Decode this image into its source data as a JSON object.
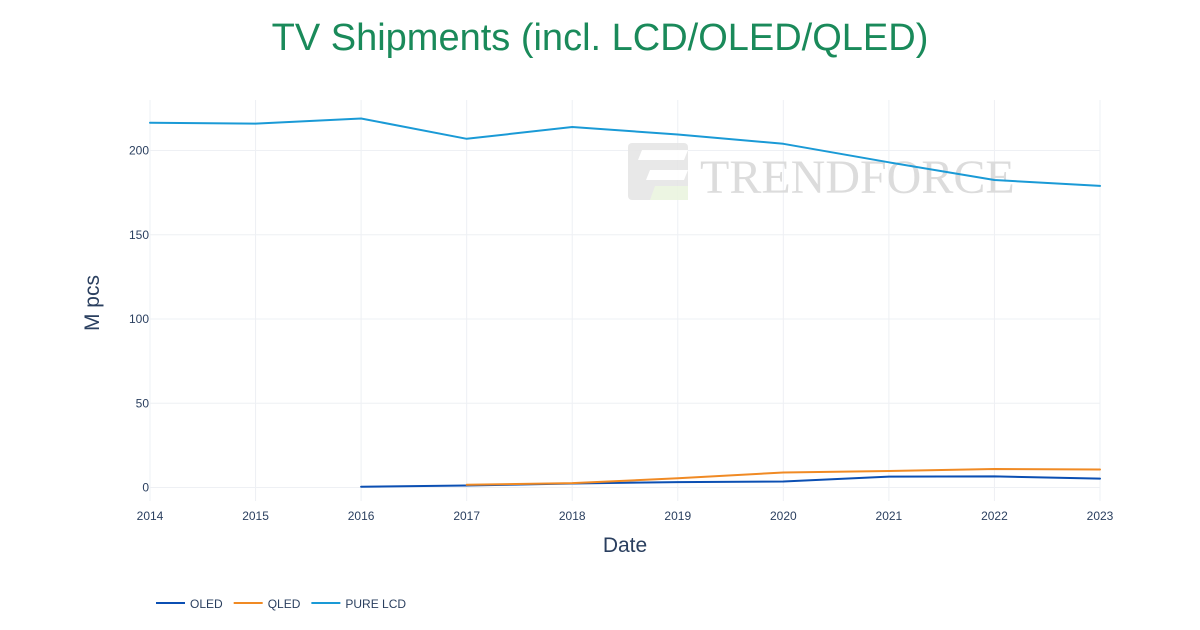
{
  "chart_data": {
    "type": "line",
    "title": "TV Shipments (incl. LCD/OLED/QLED)",
    "xlabel": "Date",
    "ylabel": "M pcs",
    "xlim": [
      2014,
      2023
    ],
    "ylim": [
      -8,
      230
    ],
    "x_ticks": [
      2014,
      2015,
      2016,
      2017,
      2018,
      2019,
      2020,
      2021,
      2022,
      2023
    ],
    "y_ticks": [
      0,
      50,
      100,
      150,
      200
    ],
    "grid": true,
    "legend_position": "bottom-left",
    "series": [
      {
        "name": "OLED",
        "color": "#0b4fb3",
        "x": [
          2016,
          2017,
          2018,
          2019,
          2020,
          2021,
          2022,
          2023
        ],
        "values": [
          0.5,
          1.2,
          2.4,
          3.2,
          3.6,
          6.5,
          6.6,
          5.3
        ]
      },
      {
        "name": "QLED",
        "color": "#f08a24",
        "x": [
          2017,
          2018,
          2019,
          2020,
          2021,
          2022,
          2023
        ],
        "values": [
          1.6,
          2.6,
          5.5,
          8.9,
          9.8,
          11.0,
          10.7
        ]
      },
      {
        "name": "PURE LCD",
        "color": "#1a9ad6",
        "x": [
          2014,
          2015,
          2016,
          2017,
          2018,
          2019,
          2020,
          2021,
          2022,
          2023
        ],
        "values": [
          216.5,
          216.0,
          219.0,
          207.0,
          214.0,
          209.5,
          204.0,
          193.0,
          182.5,
          179.0
        ]
      }
    ]
  },
  "watermark": {
    "text": "TRENDFORCE",
    "color": "#d9d9d9"
  }
}
